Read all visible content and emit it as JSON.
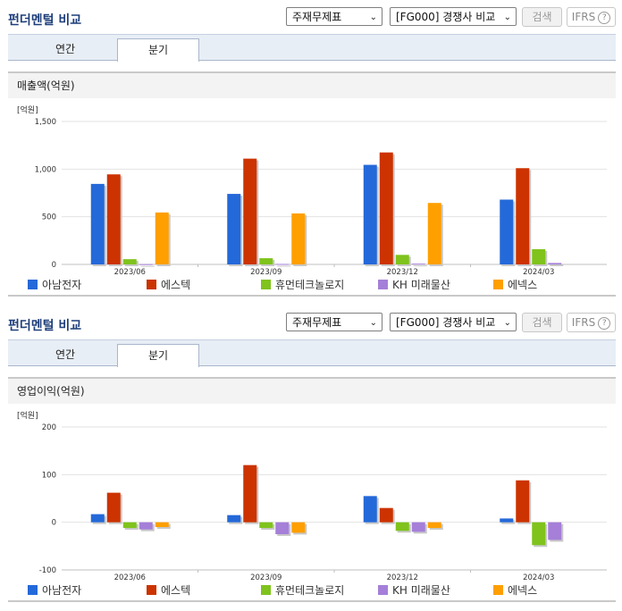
{
  "header": {
    "title": "펀더멘털 비교",
    "select_statement": "주재무제표",
    "select_compare": "[FG000] 경쟁사 비교",
    "search_label": "검색",
    "ifrs_label": "IFRS"
  },
  "tabs": {
    "annual": "연간",
    "quarter": "분기",
    "active": "quarter"
  },
  "legend_series": [
    {
      "name": "아남전자",
      "color": "#2469d9"
    },
    {
      "name": "에스텍",
      "color": "#cc3300"
    },
    {
      "name": "휴먼테크놀로지",
      "color": "#7fc31c"
    },
    {
      "name": "KH 미래물산",
      "color": "#a57fd8"
    },
    {
      "name": "에넥스",
      "color": "#ff9f00"
    }
  ],
  "chart_data": [
    {
      "type": "bar",
      "title": "매출액(억원)",
      "unit": "[억원]",
      "categories": [
        "2023/06",
        "2023/09",
        "2023/12",
        "2024/03"
      ],
      "ylim": [
        0,
        1500
      ],
      "yticks": [
        0,
        500,
        1000,
        1500
      ],
      "ytick_labels": [
        "0",
        "500",
        "1,000",
        "1,500"
      ],
      "series": [
        {
          "name": "아남전자",
          "values": [
            845,
            740,
            1045,
            680
          ]
        },
        {
          "name": "에스텍",
          "values": [
            945,
            1110,
            1175,
            1010
          ]
        },
        {
          "name": "휴먼테크놀로지",
          "values": [
            55,
            65,
            100,
            160
          ]
        },
        {
          "name": "KH 미래물산",
          "values": [
            3,
            5,
            8,
            15
          ]
        },
        {
          "name": "에넥스",
          "values": [
            545,
            535,
            645,
            null
          ]
        }
      ]
    },
    {
      "type": "bar",
      "title": "영업이익(억원)",
      "unit": "[억원]",
      "categories": [
        "2023/06",
        "2023/09",
        "2023/12",
        "2024/03"
      ],
      "ylim": [
        -100,
        200
      ],
      "yticks": [
        -100,
        0,
        100,
        200
      ],
      "ytick_labels": [
        "-100",
        "0",
        "100",
        "200"
      ],
      "series": [
        {
          "name": "아남전자",
          "values": [
            17,
            15,
            55,
            8
          ]
        },
        {
          "name": "에스텍",
          "values": [
            62,
            120,
            30,
            88
          ]
        },
        {
          "name": "휴먼테크놀로지",
          "values": [
            -12,
            -12,
            -18,
            -48
          ]
        },
        {
          "name": "KH 미래물산",
          "values": [
            -15,
            -25,
            -20,
            -37
          ]
        },
        {
          "name": "에넥스",
          "values": [
            -10,
            -22,
            -12,
            null
          ]
        }
      ]
    }
  ]
}
